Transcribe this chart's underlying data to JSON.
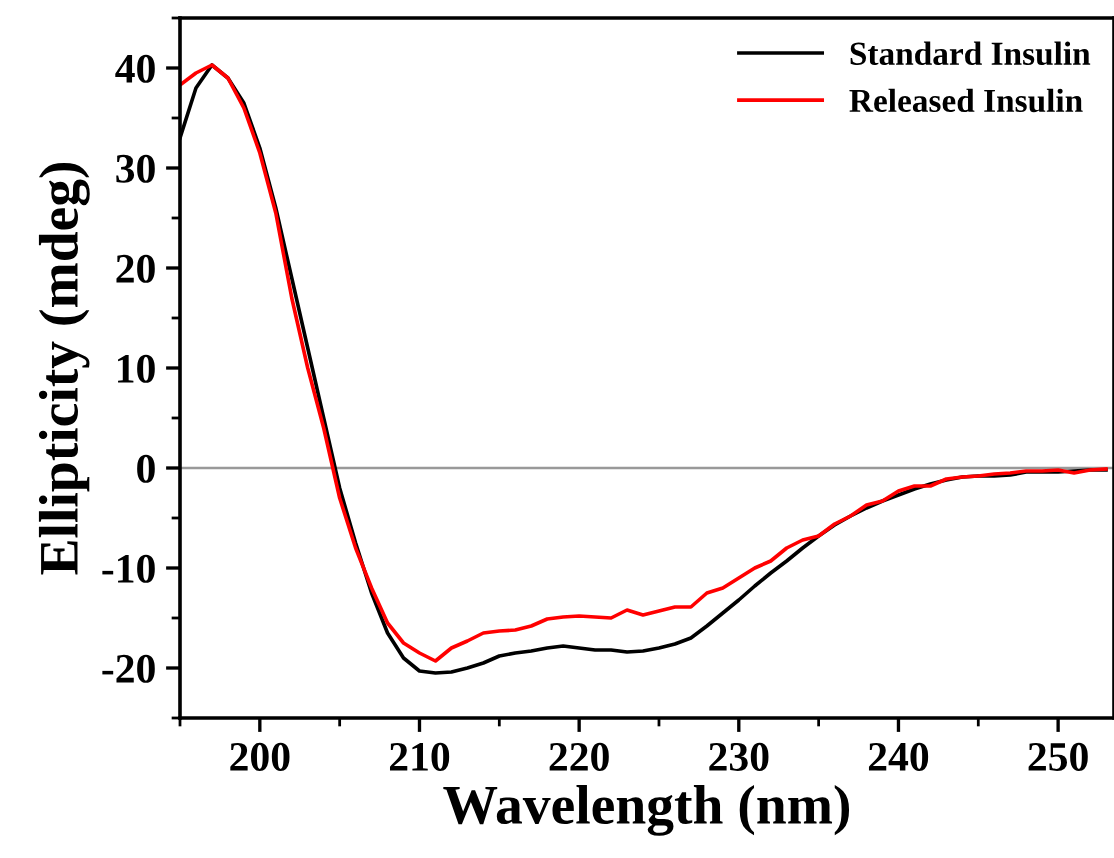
{
  "chart_data": {
    "type": "line",
    "xlabel": "Wavelength (nm)",
    "ylabel": "Ellipticity (mdeg)",
    "x": [
      195,
      196,
      197,
      198,
      199,
      200,
      201,
      202,
      203,
      204,
      205,
      206,
      207,
      208,
      209,
      210,
      211,
      212,
      213,
      214,
      215,
      216,
      217,
      218,
      219,
      220,
      221,
      222,
      223,
      224,
      225,
      226,
      227,
      228,
      229,
      230,
      231,
      232,
      233,
      234,
      235,
      236,
      237,
      238,
      239,
      240,
      241,
      242,
      243,
      244,
      245,
      246,
      247,
      248,
      249,
      250,
      251,
      252,
      253
    ],
    "series": [
      {
        "name": "Standard Insulin",
        "color": "#000000",
        "values": [
          33,
          38,
          40.3,
          39,
          36.5,
          32,
          26,
          19,
          12,
          5,
          -2,
          -7.5,
          -12.5,
          -16.5,
          -19,
          -20.3,
          -20.5,
          -20.4,
          -20,
          -19.5,
          -18.8,
          -18.5,
          -18.3,
          -18,
          -17.8,
          -18,
          -18.2,
          -18.2,
          -18.4,
          -18.3,
          -18,
          -17.6,
          -17,
          -15.8,
          -14.5,
          -13.2,
          -11.8,
          -10.5,
          -9.3,
          -8,
          -6.8,
          -5.7,
          -4.8,
          -4,
          -3.3,
          -2.7,
          -2.1,
          -1.6,
          -1.2,
          -0.9,
          -0.8,
          -0.8,
          -0.7,
          -0.4,
          -0.4,
          -0.4,
          -0.3,
          -0.2,
          -0.2
        ]
      },
      {
        "name": "Released Insulin",
        "color": "#ff0000",
        "values": [
          38.3,
          39.5,
          40.3,
          39,
          36,
          31.5,
          25.5,
          17,
          10,
          4,
          -3,
          -8,
          -12,
          -15.5,
          -17.5,
          -18.5,
          -19.3,
          -18,
          -17.3,
          -16.5,
          -16.3,
          -16.2,
          -15.8,
          -15.1,
          -14.9,
          -14.8,
          -14.9,
          -15,
          -14.2,
          -14.7,
          -14.3,
          -13.9,
          -13.9,
          -12.5,
          -12,
          -11,
          -10,
          -9.3,
          -8,
          -7.2,
          -6.8,
          -5.6,
          -4.8,
          -3.7,
          -3.3,
          -2.3,
          -1.8,
          -1.8,
          -1.1,
          -0.9,
          -0.8,
          -0.6,
          -0.5,
          -0.3,
          -0.3,
          -0.2,
          -0.5,
          -0.2,
          -0.1
        ]
      }
    ],
    "xlim": [
      195,
      253.5
    ],
    "ylim": [
      -25,
      45
    ],
    "xticks": [
      200,
      210,
      220,
      230,
      240,
      250
    ],
    "yticks": [
      -20,
      -10,
      0,
      10,
      20,
      30,
      40
    ],
    "ref_lines": [
      {
        "axis": "y",
        "value": 0,
        "color": "#999999"
      }
    ],
    "legend": "top right",
    "grid": false
  }
}
